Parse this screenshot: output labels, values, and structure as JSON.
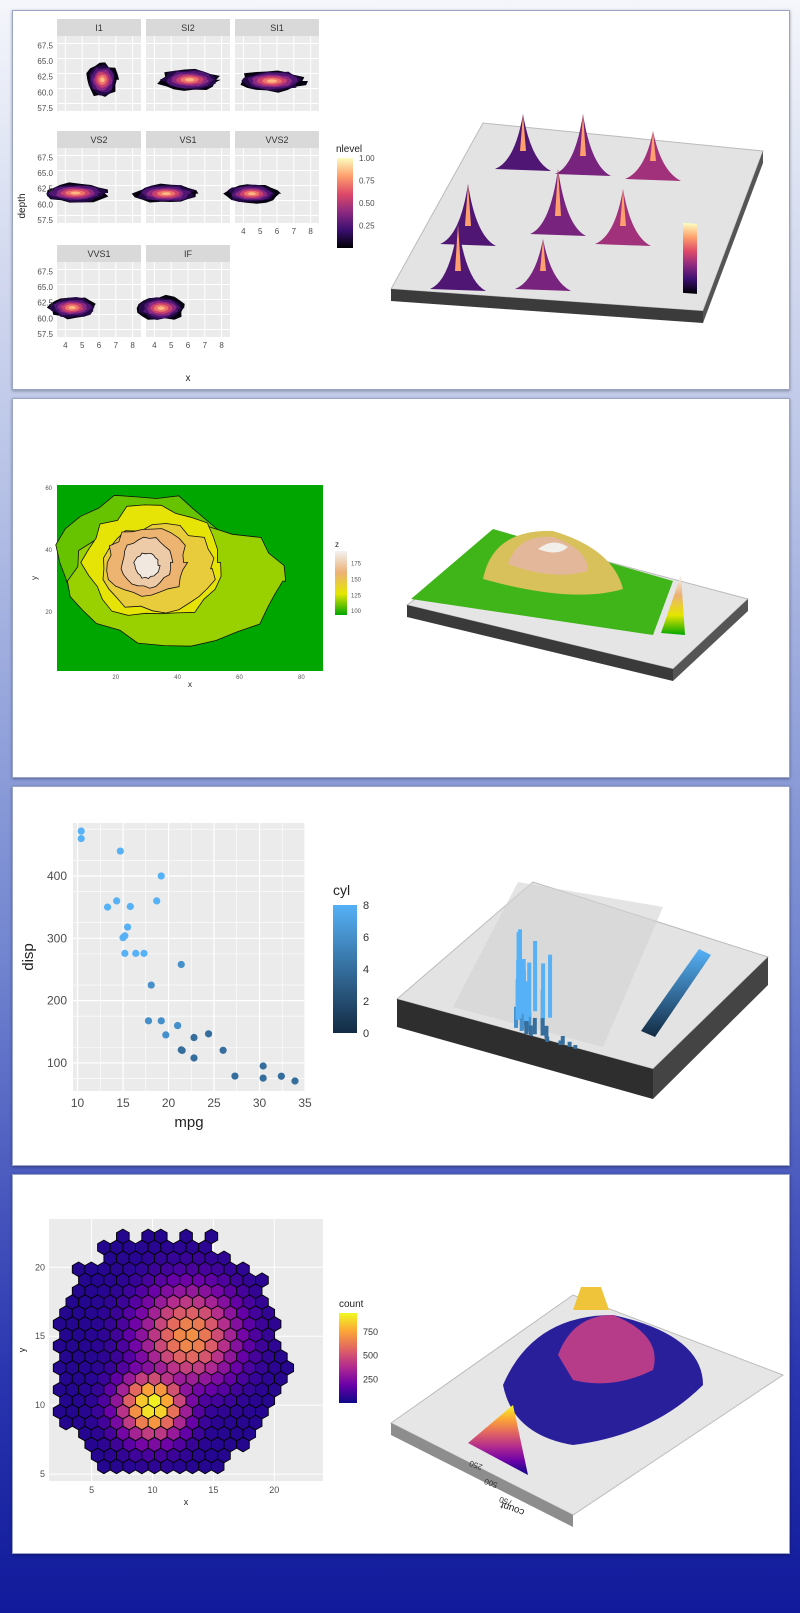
{
  "panel1": {
    "facets": [
      "I1",
      "SI2",
      "SI1",
      "VS2",
      "VS1",
      "VVS2",
      "VVS1",
      "IF"
    ],
    "ylabel": "depth",
    "xlabel": "x",
    "y_ticks": [
      "67.5",
      "65.0",
      "62.5",
      "60.0",
      "57.5"
    ],
    "x_ticks": [
      "4",
      "5",
      "6",
      "7",
      "8"
    ],
    "legend_title": "nlevel",
    "legend_ticks": [
      "1.00",
      "0.75",
      "0.50",
      "0.25"
    ],
    "chart_data": {
      "type": "heatmap",
      "description_type": "faceted 2d density (x vs depth) by clarity",
      "xlim": [
        3.5,
        8.5
      ],
      "ylim": [
        57,
        69
      ],
      "fill_range": [
        0,
        1
      ],
      "facets": [
        "I1",
        "SI2",
        "SI1",
        "VS2",
        "VS1",
        "VVS2",
        "VVS1",
        "IF"
      ],
      "peaks": [
        {
          "facet": "I1",
          "x": 6.2,
          "y": 62.0
        },
        {
          "facet": "SI2",
          "x": 6.1,
          "y": 62.0
        },
        {
          "facet": "SI1",
          "x": 5.7,
          "y": 61.8
        },
        {
          "facet": "VS2",
          "x": 4.6,
          "y": 61.8
        },
        {
          "facet": "VS1",
          "x": 4.7,
          "y": 61.7
        },
        {
          "facet": "VVS2",
          "x": 4.5,
          "y": 61.7
        },
        {
          "facet": "VVS1",
          "x": 4.4,
          "y": 61.7
        },
        {
          "facet": "IF",
          "x": 4.4,
          "y": 61.6
        }
      ]
    }
  },
  "panel2": {
    "ylabel": "y",
    "xlabel": "x",
    "y_ticks": [
      "60",
      "40",
      "20"
    ],
    "x_ticks": [
      "20",
      "40",
      "60",
      "80"
    ],
    "legend_title": "z",
    "legend_ticks": [
      "175",
      "150",
      "125",
      "100"
    ],
    "chart_data": {
      "type": "heatmap",
      "description_type": "volcano contour / raster",
      "xlim": [
        1,
        87
      ],
      "ylim": [
        1,
        61
      ],
      "zlim": [
        94,
        195
      ],
      "peak": {
        "x": 30,
        "y": 35,
        "z": 195
      }
    }
  },
  "panel3": {
    "ylabel": "disp",
    "xlabel": "mpg",
    "y_ticks": [
      "400",
      "300",
      "200",
      "100"
    ],
    "x_ticks": [
      "10",
      "15",
      "20",
      "25",
      "30",
      "35"
    ],
    "legend_title": "cyl",
    "legend_ticks": [
      "8",
      "6",
      "4",
      "2",
      "0"
    ],
    "chart_data": {
      "type": "scatter",
      "xlabel": "mpg",
      "ylabel": "disp",
      "color_by": "cyl",
      "xlim": [
        9.5,
        35
      ],
      "ylim": [
        55,
        485
      ],
      "color_range": [
        0,
        8
      ],
      "points": [
        [
          21.0,
          160,
          6
        ],
        [
          21.0,
          160,
          6
        ],
        [
          22.8,
          108,
          4
        ],
        [
          21.4,
          258,
          6
        ],
        [
          18.7,
          360,
          8
        ],
        [
          18.1,
          225,
          6
        ],
        [
          14.3,
          360,
          8
        ],
        [
          24.4,
          146.7,
          4
        ],
        [
          22.8,
          140.8,
          4
        ],
        [
          19.2,
          167.6,
          6
        ],
        [
          17.8,
          167.6,
          6
        ],
        [
          16.4,
          275.8,
          8
        ],
        [
          17.3,
          275.8,
          8
        ],
        [
          15.2,
          275.8,
          8
        ],
        [
          10.4,
          472,
          8
        ],
        [
          10.4,
          460,
          8
        ],
        [
          14.7,
          440,
          8
        ],
        [
          32.4,
          78.7,
          4
        ],
        [
          30.4,
          75.7,
          4
        ],
        [
          33.9,
          71.1,
          4
        ],
        [
          21.5,
          120.1,
          4
        ],
        [
          15.5,
          318,
          8
        ],
        [
          15.2,
          304,
          8
        ],
        [
          13.3,
          350,
          8
        ],
        [
          19.2,
          400,
          8
        ],
        [
          27.3,
          79,
          4
        ],
        [
          26.0,
          120.3,
          4
        ],
        [
          30.4,
          95.1,
          4
        ],
        [
          15.8,
          351,
          8
        ],
        [
          19.7,
          145,
          6
        ],
        [
          15.0,
          301,
          8
        ],
        [
          21.4,
          121,
          4
        ]
      ]
    }
  },
  "panel4": {
    "ylabel": "y",
    "xlabel": "x",
    "y_ticks": [
      "20",
      "15",
      "10",
      "5"
    ],
    "x_ticks": [
      "5",
      "10",
      "15",
      "20"
    ],
    "legend_title": "count",
    "legend_ticks": [
      "750",
      "500",
      "250"
    ],
    "chart_data": {
      "type": "heatmap",
      "description_type": "hexbin counts",
      "xlim": [
        1.5,
        24
      ],
      "ylim": [
        4.5,
        23.5
      ],
      "count_range": [
        1,
        950
      ],
      "clusters": [
        {
          "x": 10,
          "y": 10,
          "peak_count": 950
        },
        {
          "x": 13,
          "y": 15,
          "peak_count": 700
        }
      ]
    },
    "count3d_label": "count",
    "count3d_ticks": [
      "250",
      "500",
      "750"
    ]
  },
  "colors": {
    "magma": [
      "#000004",
      "#3b0f70",
      "#8c2981",
      "#de4968",
      "#fe9f6d",
      "#fcfdbf"
    ],
    "plasma": [
      "#0d0887",
      "#6a00a8",
      "#b12a90",
      "#e16462",
      "#fca636",
      "#f0f921"
    ],
    "terrain": [
      "#00a600",
      "#e6e600",
      "#ecb176",
      "#f2f2f2"
    ],
    "blues": [
      "#132b43",
      "#56b1f7"
    ],
    "plot_bg": "#ebebeb",
    "strip_bg": "#d9d9d9"
  }
}
